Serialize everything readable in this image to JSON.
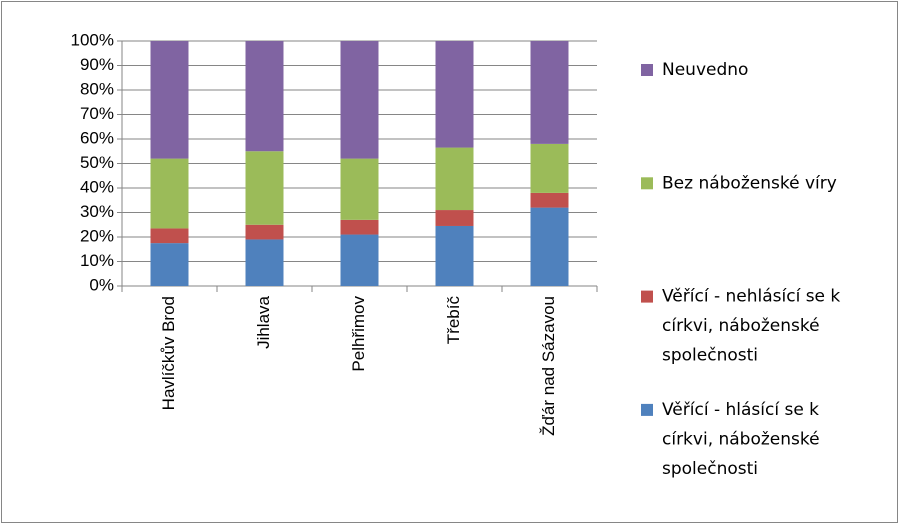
{
  "chart_data": {
    "type": "stacked_bar_100",
    "categories": [
      "Havlíčkův Brod",
      "Jihlava",
      "Pelhřimov",
      "Třebíč",
      "Žďár nad Sázavou"
    ],
    "series": [
      {
        "name": "Věřící - hlásící se k církvi, náboženské společnosti",
        "color": "#4f81bd",
        "values": [
          17.5,
          19,
          21,
          24.5,
          32
        ]
      },
      {
        "name": "Věřící - nehlásící se k církvi, náboženské společnosti",
        "color": "#c0504d",
        "values": [
          6,
          6,
          6,
          6.5,
          6
        ]
      },
      {
        "name": "Bez náboženské víry",
        "color": "#9bbb59",
        "values": [
          28.5,
          30,
          25,
          25.5,
          20
        ]
      },
      {
        "name": "Neuvedno",
        "color": "#8064a2",
        "values": [
          48,
          45,
          48,
          43.5,
          42
        ]
      }
    ],
    "ylim": [
      0,
      100
    ],
    "yticks": [
      {
        "value": 0,
        "label": "0%"
      },
      {
        "value": 10,
        "label": "10%"
      },
      {
        "value": 20,
        "label": "20%"
      },
      {
        "value": 30,
        "label": "30%"
      },
      {
        "value": 40,
        "label": "40%"
      },
      {
        "value": 50,
        "label": "50%"
      },
      {
        "value": 60,
        "label": "60%"
      },
      {
        "value": 70,
        "label": "70%"
      },
      {
        "value": 80,
        "label": "80%"
      },
      {
        "value": 90,
        "label": "90%"
      },
      {
        "value": 100,
        "label": "100%"
      }
    ],
    "grid": true,
    "legend": "right"
  }
}
